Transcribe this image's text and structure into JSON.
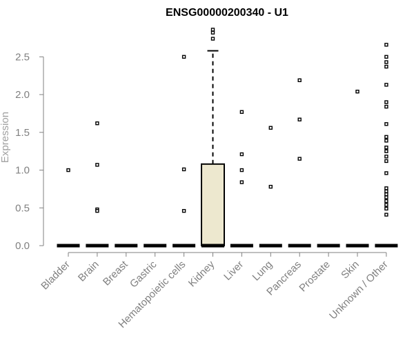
{
  "chart_data": {
    "type": "box",
    "title": "ENSG00000200340 - U1",
    "xlabel": "",
    "ylabel": "Expression",
    "ylim": [
      0,
      2.75
    ],
    "yticks": [
      "0.0",
      "0.5",
      "1.0",
      "1.5",
      "2.0",
      "2.5"
    ],
    "grid": false,
    "legend": "none",
    "categories": [
      "Bladder",
      "Brain",
      "Breast",
      "Gastric",
      "Hematopoietic cells",
      "Kidney",
      "Liver",
      "Lung",
      "Pancreas",
      "Prostate",
      "Skin",
      "Unknown / Other"
    ],
    "boxes": [
      {
        "category": "Bladder",
        "q1": 0,
        "median": 0,
        "q3": 0,
        "whisker_low": 0,
        "whisker_high": 0,
        "outliers": [
          1.0
        ]
      },
      {
        "category": "Brain",
        "q1": 0,
        "median": 0,
        "q3": 0,
        "whisker_low": 0,
        "whisker_high": 0,
        "outliers": [
          1.62,
          1.07,
          0.48,
          0.46
        ]
      },
      {
        "category": "Breast",
        "q1": 0,
        "median": 0,
        "q3": 0,
        "whisker_low": 0,
        "whisker_high": 0,
        "outliers": []
      },
      {
        "category": "Gastric",
        "q1": 0,
        "median": 0,
        "q3": 0,
        "whisker_low": 0,
        "whisker_high": 0,
        "outliers": []
      },
      {
        "category": "Hematopoietic cells",
        "q1": 0,
        "median": 0,
        "q3": 0,
        "whisker_low": 0,
        "whisker_high": 0,
        "outliers": [
          2.5,
          1.01,
          0.46
        ]
      },
      {
        "category": "Kidney",
        "q1": 0,
        "median": 0,
        "q3": 1.08,
        "whisker_low": 0,
        "whisker_high": 2.58,
        "outliers": [
          2.86,
          2.82,
          2.74
        ]
      },
      {
        "category": "Liver",
        "q1": 0,
        "median": 0,
        "q3": 0,
        "whisker_low": 0,
        "whisker_high": 0,
        "outliers": [
          1.77,
          1.21,
          1.0,
          0.84
        ]
      },
      {
        "category": "Lung",
        "q1": 0,
        "median": 0,
        "q3": 0,
        "whisker_low": 0,
        "whisker_high": 0,
        "outliers": [
          1.56,
          0.78
        ]
      },
      {
        "category": "Pancreas",
        "q1": 0,
        "median": 0,
        "q3": 0,
        "whisker_low": 0,
        "whisker_high": 0,
        "outliers": [
          2.19,
          1.67,
          1.15
        ]
      },
      {
        "category": "Prostate",
        "q1": 0,
        "median": 0,
        "q3": 0,
        "whisker_low": 0,
        "whisker_high": 0,
        "outliers": []
      },
      {
        "category": "Skin",
        "q1": 0,
        "median": 0,
        "q3": 0,
        "whisker_low": 0,
        "whisker_high": 0,
        "outliers": [
          2.04
        ]
      },
      {
        "category": "Unknown / Other",
        "q1": 0,
        "median": 0,
        "q3": 0,
        "whisker_low": 0,
        "whisker_high": 0,
        "outliers": [
          2.66,
          2.5,
          2.43,
          2.37,
          2.13,
          1.9,
          1.84,
          1.61,
          1.44,
          1.39,
          1.3,
          1.25,
          1.18,
          1.12,
          0.96,
          0.76,
          0.72,
          0.68,
          0.64,
          0.59,
          0.54,
          0.49,
          0.41
        ]
      }
    ],
    "box_fill": "#ede8cf",
    "box_stroke": "#000000",
    "text_color": "#808080"
  }
}
